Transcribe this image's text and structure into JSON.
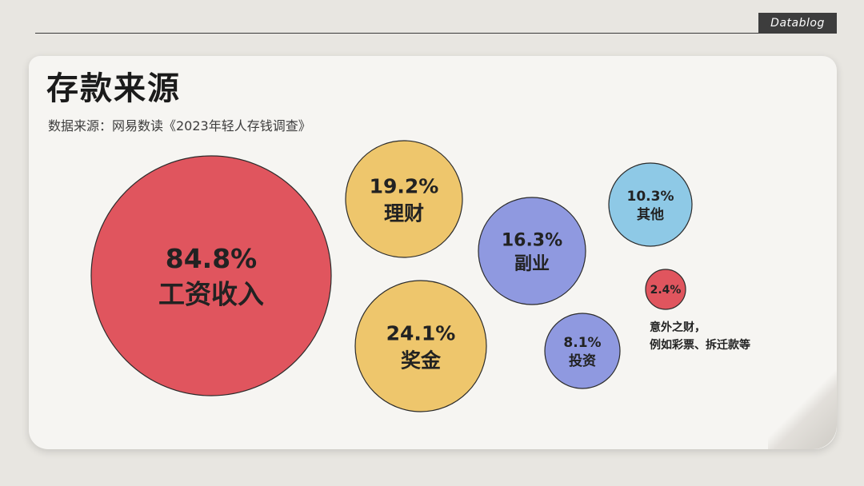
{
  "brand": "Datablog",
  "title": "存款来源",
  "subtitle": "数据来源：网易数读《2023年轻人存钱调查》",
  "colors": {
    "red": "#e0555e",
    "yellow": "#eec66c",
    "periwinkle": "#8f99e0",
    "skyblue": "#8ec9e6",
    "background": "#e8e6e1",
    "paper": "#f6f5f2"
  },
  "chart_data": {
    "type": "bubble",
    "title": "存款来源",
    "unit": "%",
    "items": [
      {
        "label": "工资收入",
        "value": 84.8,
        "value_text": "84.8%",
        "color": "#e0555e"
      },
      {
        "label": "理财",
        "value": 19.2,
        "value_text": "19.2%",
        "color": "#eec66c"
      },
      {
        "label": "奖金",
        "value": 24.1,
        "value_text": "24.1%",
        "color": "#eec66c"
      },
      {
        "label": "副业",
        "value": 16.3,
        "value_text": "16.3%",
        "color": "#8f99e0"
      },
      {
        "label": "其他",
        "value": 10.3,
        "value_text": "10.3%",
        "color": "#8ec9e6"
      },
      {
        "label": "投资",
        "value": 8.1,
        "value_text": "8.1%",
        "color": "#8f99e0"
      },
      {
        "label": "意外之财，例如彩票、拆迁款等",
        "value": 2.4,
        "value_text": "2.4%",
        "color": "#e0555e"
      }
    ]
  },
  "note_lines": [
    "意外之财，",
    "例如彩票、拆迁款等"
  ]
}
